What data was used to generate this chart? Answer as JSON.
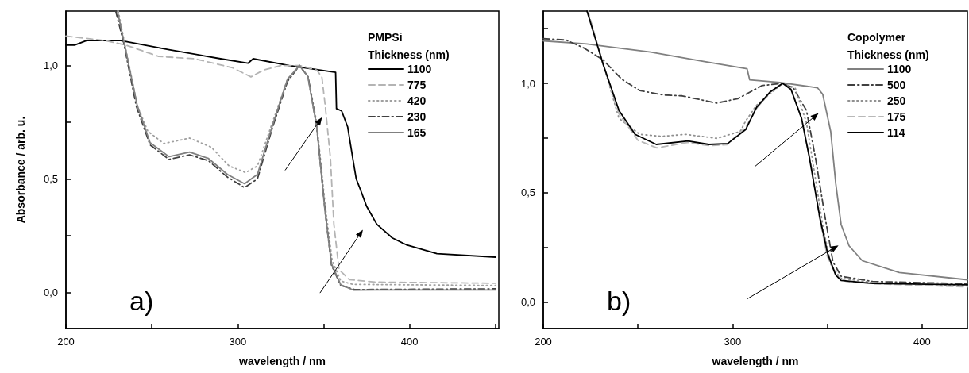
{
  "chart_data": [
    {
      "type": "line",
      "xlabel": "wavelength / nm",
      "ylabel": "Absorbance / arb. u.",
      "legend_title": "PMPSi\nThickness (nm)",
      "legend": "top right",
      "grid": false,
      "marker": "none",
      "annotations": [
        "a)"
      ],
      "xlim": [
        200,
        452
      ],
      "xticks": [
        200,
        {
          "value": 250,
          "label": null
        },
        300,
        {
          "value": 350,
          "label": null
        },
        400,
        {
          "value": 450,
          "label": null
        }
      ],
      "ylim": [
        -0.16,
        1.24
      ],
      "yticks": [
        {
          "value": 0,
          "label": "0,0"
        },
        {
          "value": 0.25,
          "label": null
        },
        {
          "value": 0.5,
          "label": "0,5"
        },
        {
          "value": 0.75,
          "label": null
        },
        {
          "value": 1,
          "label": "1,0"
        }
      ],
      "series": [
        {
          "name": "1100",
          "color": "#000000",
          "line_style": "solid",
          "x": [
            200,
            205,
            212,
            232,
            260,
            290,
            306,
            309,
            330,
            357,
            357.5,
            360.5,
            364,
            367,
            369,
            371.6,
            375,
            381,
            390,
            398,
            416,
            450
          ],
          "values": [
            1.09,
            1.09,
            1.11,
            1.11,
            1.07,
            1.03,
            1.01,
            1.03,
            1.0,
            0.97,
            0.81,
            0.8,
            0.73,
            0.59,
            0.5,
            0.45,
            0.38,
            0.3,
            0.24,
            0.21,
            0.17,
            0.155
          ]
        },
        {
          "name": "775",
          "color": "#b4b4b4",
          "line_style": "dashed",
          "x": [
            200,
            223,
            235,
            254,
            275,
            297,
            307.7,
            315,
            325,
            336,
            346,
            349,
            351,
            354,
            356,
            359,
            365,
            380,
            450
          ],
          "values": [
            1.13,
            1.11,
            1.09,
            1.04,
            1.03,
            0.99,
            0.95,
            0.98,
            1.0,
            1.0,
            0.98,
            0.95,
            0.82,
            0.59,
            0.3,
            0.1,
            0.056,
            0.045,
            0.04
          ]
        },
        {
          "name": "420",
          "color": "#a0a0a0",
          "line_style": "dotted",
          "x": [
            230.5,
            234,
            241.5,
            247.7,
            257,
            272,
            284.6,
            295,
            304.6,
            311.5,
            320,
            329,
            336,
            341,
            346,
            351,
            355,
            360,
            367,
            450
          ],
          "values": [
            1.24,
            1.105,
            0.825,
            0.71,
            0.656,
            0.68,
            0.64,
            0.557,
            0.528,
            0.557,
            0.744,
            0.94,
            1.0,
            0.95,
            0.75,
            0.38,
            0.14,
            0.05,
            0.035,
            0.03
          ]
        },
        {
          "name": "230",
          "color": "#404040",
          "line_style": "dashdot",
          "x": [
            229,
            233.5,
            241,
            249,
            260,
            272,
            283,
            294,
            304,
            311.5,
            320,
            329,
            336,
            341,
            346,
            351,
            354.6,
            360,
            368,
            450
          ],
          "values": [
            1.24,
            1.105,
            0.82,
            0.65,
            0.586,
            0.606,
            0.58,
            0.508,
            0.462,
            0.5,
            0.72,
            0.93,
            1.0,
            0.95,
            0.73,
            0.35,
            0.12,
            0.03,
            0.012,
            0.015
          ]
        },
        {
          "name": "165",
          "color": "#808080",
          "line_style": "solid",
          "x": [
            230,
            233.8,
            241.5,
            249,
            260,
            272,
            283,
            294,
            304,
            311.5,
            320,
            329,
            336,
            340.8,
            346,
            350.8,
            354.6,
            360,
            367.7,
            380,
            450
          ],
          "values": [
            1.24,
            1.105,
            0.825,
            0.66,
            0.598,
            0.618,
            0.59,
            0.52,
            0.479,
            0.52,
            0.73,
            0.94,
            1.0,
            0.953,
            0.73,
            0.36,
            0.126,
            0.033,
            0.009,
            0.01,
            0.01
          ]
        }
      ]
    },
    {
      "type": "line",
      "xlabel": "wavelength / nm",
      "legend_title": "Copolymer\nThickness (nm)",
      "legend": "top right",
      "grid": false,
      "marker": "none",
      "annotations": [
        "b)"
      ],
      "xlim": [
        200,
        424
      ],
      "xticks": [
        200,
        {
          "value": 250,
          "label": null
        },
        300,
        {
          "value": 350,
          "label": null
        },
        400
      ],
      "ylim": [
        -0.12,
        1.33
      ],
      "yticks": [
        {
          "value": 0,
          "label": "0,0"
        },
        {
          "value": 0.25,
          "label": null
        },
        {
          "value": 0.5,
          "label": "0,5"
        },
        {
          "value": 0.75,
          "label": null
        },
        {
          "value": 1,
          "label": "1,0"
        },
        {
          "value": 1.25,
          "label": null
        }
      ],
      "series": [
        {
          "name": "1100",
          "color": "#808080",
          "line_style": "solid",
          "x": [
            200,
            223,
            256.7,
            284.6,
            307.6,
            309,
            325,
            344.8,
            347.6,
            351.8,
            354.5,
            357.3,
            361.5,
            368.5,
            388,
            424
          ],
          "values": [
            1.194,
            1.18,
            1.143,
            1.1,
            1.067,
            1.016,
            1.004,
            0.98,
            0.95,
            0.78,
            0.54,
            0.355,
            0.258,
            0.19,
            0.136,
            0.103
          ]
        },
        {
          "name": "500",
          "color": "#404040",
          "line_style": "dashdot",
          "x": [
            200,
            212,
            221.8,
            231.6,
            241.3,
            251,
            263.6,
            273.4,
            291.6,
            302.7,
            307,
            315.5,
            326.4,
            332,
            339,
            343.8,
            348.8,
            353,
            357.3,
            374,
            424
          ],
          "values": [
            1.204,
            1.198,
            1.16,
            1.107,
            1.02,
            0.967,
            0.947,
            0.943,
            0.91,
            0.93,
            0.95,
            0.99,
            1.0,
            0.98,
            0.876,
            0.658,
            0.39,
            0.185,
            0.119,
            0.095,
            0.085
          ]
        },
        {
          "name": "250",
          "color": "#909090",
          "line_style": "dotted",
          "x": [
            223.5,
            231.8,
            240,
            251,
            262.5,
            275,
            291.6,
            304,
            307,
            312.6,
            326.4,
            333,
            339,
            344,
            348,
            352,
            357,
            374,
            424
          ],
          "values": [
            1.33,
            1.082,
            0.84,
            0.767,
            0.758,
            0.767,
            0.749,
            0.78,
            0.83,
            0.9,
            1.0,
            0.98,
            0.82,
            0.55,
            0.33,
            0.17,
            0.11,
            0.09,
            0.075
          ]
        },
        {
          "name": "175",
          "color": "#b8b8b8",
          "line_style": "dashed",
          "x": [
            223.6,
            231.8,
            240,
            250,
            260,
            276,
            288,
            297,
            307,
            313,
            320,
            326.4,
            331,
            336.4,
            341,
            346,
            350,
            355,
            360,
            374,
            424
          ],
          "values": [
            1.33,
            1.082,
            0.86,
            0.74,
            0.705,
            0.73,
            0.715,
            0.72,
            0.8,
            0.89,
            0.96,
            1.0,
            0.97,
            0.84,
            0.65,
            0.38,
            0.21,
            0.12,
            0.095,
            0.085,
            0.07
          ]
        },
        {
          "name": "114",
          "color": "#000000",
          "line_style": "solid",
          "x": [
            223.1,
            231.8,
            240,
            248.5,
            259.7,
            276.4,
            287.5,
            297.4,
            307,
            312.6,
            319.7,
            326.4,
            330.8,
            336.4,
            340.6,
            346,
            350.2,
            354.4,
            357.3,
            374,
            424
          ],
          "values": [
            1.33,
            1.082,
            0.876,
            0.767,
            0.721,
            0.737,
            0.721,
            0.725,
            0.79,
            0.89,
            0.96,
            1.0,
            0.973,
            0.84,
            0.658,
            0.39,
            0.222,
            0.125,
            0.1,
            0.086,
            0.08
          ]
        }
      ]
    }
  ]
}
